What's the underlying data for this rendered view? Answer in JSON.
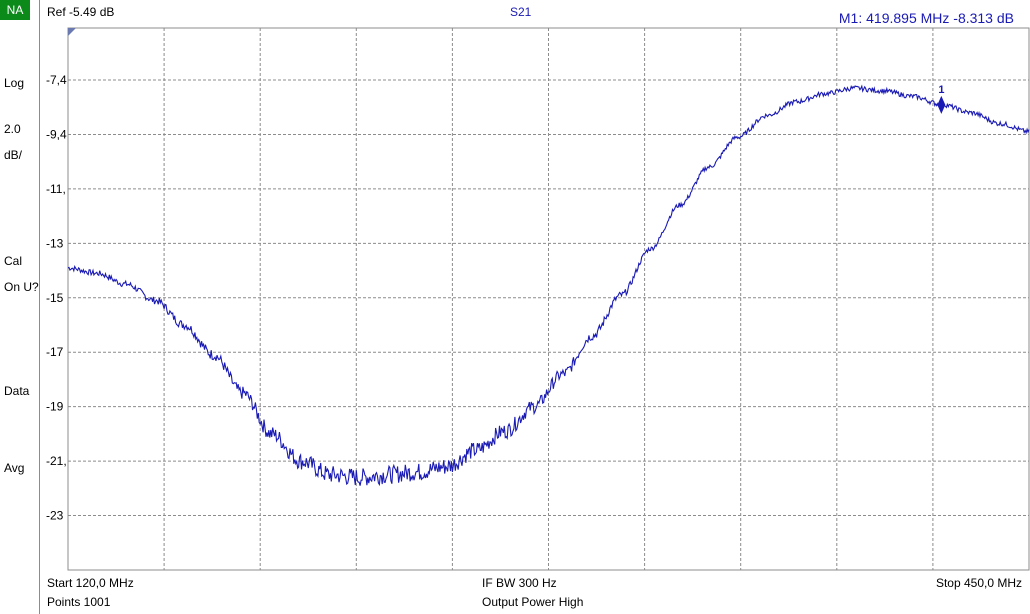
{
  "side_panel": {
    "badge": "NA",
    "scale_type": "Log",
    "scale_value": "2.0",
    "scale_unit": "dB/",
    "cal_label": "Cal",
    "cal_state": "On U?",
    "data_label": "Data",
    "avg_label": "Avg"
  },
  "header": {
    "ref": "Ref -5.49 dB",
    "measurement": "S21",
    "marker_readout": "M1:  419.895 MHz   -8.313 dB"
  },
  "footer": {
    "start": "Start 120,0 MHz",
    "points": "Points 1001",
    "if_bw": "IF BW 300 Hz",
    "output_power": "Output Power High",
    "stop": "Stop 450,0 MHz"
  },
  "colors": {
    "trace": "#1a1ab4",
    "badge": "#0b8a1a",
    "grid": "#8c8c8c",
    "marker_text": "#1a1ab4"
  },
  "chart_data": {
    "type": "line",
    "xlabel": "",
    "ylabel": "",
    "xlim": [
      120.0,
      450.0
    ],
    "ylim": [
      -25.4,
      -5.49
    ],
    "x_divisions": 10,
    "grid": true,
    "y_ticks": [
      -7.4,
      -9.4,
      -11.4,
      -13.4,
      -15.4,
      -17.4,
      -19.4,
      -21.4,
      -23.4
    ],
    "y_tick_labels": [
      "-7,4",
      "-9,4",
      "-11,",
      "-13",
      "-15",
      "-17",
      "-19",
      "-21,",
      "-23"
    ],
    "series": [
      {
        "x": [
          120,
          130,
          140,
          150,
          160,
          170,
          180,
          190,
          200,
          210,
          220,
          230,
          240,
          250,
          260,
          270,
          280,
          290,
          300,
          310,
          320,
          330,
          340,
          350,
          360,
          370,
          380,
          390,
          400,
          410,
          420,
          430,
          440,
          450
        ],
        "y": [
          -14.3,
          -14.5,
          -14.9,
          -15.5,
          -16.4,
          -17.5,
          -18.9,
          -20.4,
          -21.4,
          -21.9,
          -22.0,
          -21.9,
          -21.8,
          -21.6,
          -21.0,
          -20.3,
          -19.4,
          -18.2,
          -16.8,
          -15.3,
          -13.6,
          -12.0,
          -10.6,
          -9.5,
          -8.7,
          -8.2,
          -7.9,
          -7.7,
          -7.8,
          -8.0,
          -8.3,
          -8.6,
          -9.0,
          -9.3
        ]
      }
    ],
    "marker": {
      "label": "1",
      "x": 419.895,
      "y": -8.313
    }
  }
}
